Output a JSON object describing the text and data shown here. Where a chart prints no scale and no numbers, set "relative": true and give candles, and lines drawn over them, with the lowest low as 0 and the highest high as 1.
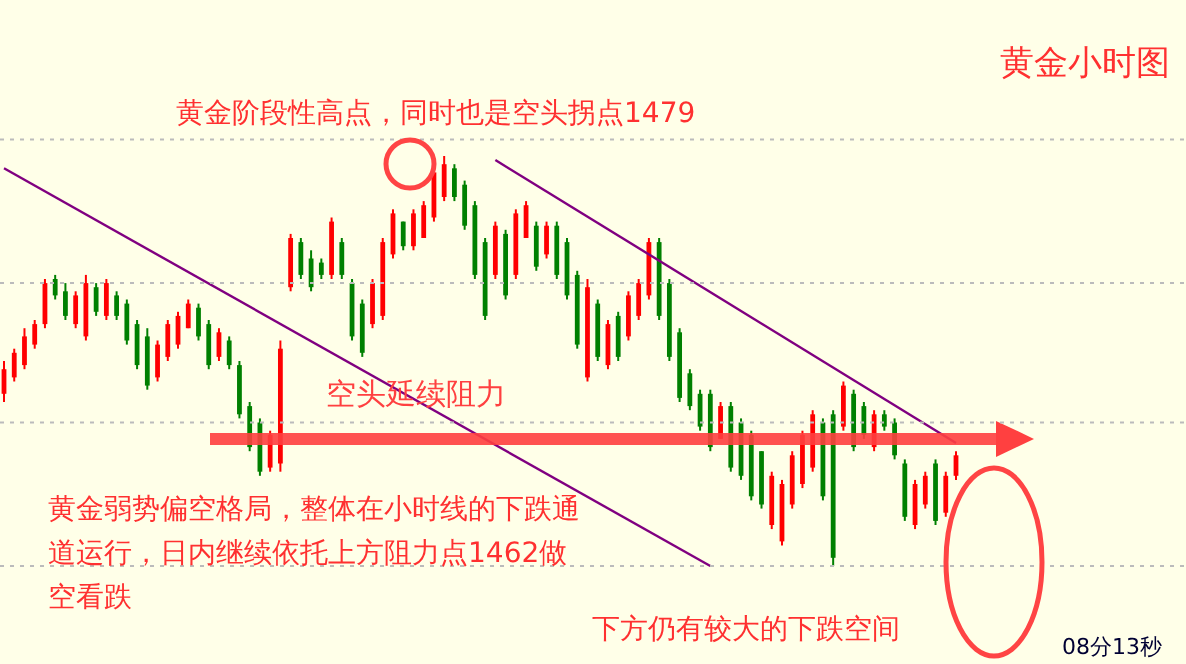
{
  "chart_data": {
    "type": "candlestick",
    "title": "黄金小时图",
    "relative": true,
    "categories": [
      null,
      null,
      null,
      null,
      null,
      null,
      null,
      null,
      null,
      null,
      null,
      null,
      null,
      null,
      null,
      null,
      null,
      null,
      null,
      null,
      null,
      null,
      null,
      null,
      null,
      null,
      null,
      null,
      null,
      null,
      null,
      null,
      null,
      null,
      null,
      null,
      null,
      null,
      null,
      null,
      null,
      null,
      null,
      null,
      null,
      null,
      null,
      null,
      null,
      null,
      null,
      null,
      null,
      null,
      null,
      null,
      null,
      null,
      null,
      null,
      null,
      null,
      null,
      null,
      null,
      null,
      null,
      null,
      null,
      null,
      null,
      null,
      null,
      null,
      null,
      null,
      null,
      null,
      null,
      null,
      null,
      null,
      null,
      null,
      null,
      null,
      null,
      null,
      null,
      null,
      null,
      null,
      null,
      null
    ],
    "ohlc": [
      [
        0.42,
        0.5,
        0.4,
        0.48
      ],
      [
        0.46,
        0.53,
        0.45,
        0.52
      ],
      [
        0.49,
        0.58,
        0.48,
        0.56
      ],
      [
        0.54,
        0.6,
        0.53,
        0.59
      ],
      [
        0.59,
        0.7,
        0.58,
        0.69
      ],
      [
        0.7,
        0.71,
        0.65,
        0.66
      ],
      [
        0.67,
        0.69,
        0.6,
        0.61
      ],
      [
        0.59,
        0.67,
        0.58,
        0.66
      ],
      [
        0.56,
        0.71,
        0.55,
        0.69
      ],
      [
        0.68,
        0.69,
        0.61,
        0.62
      ],
      [
        0.61,
        0.7,
        0.6,
        0.69
      ],
      [
        0.66,
        0.67,
        0.6,
        0.61
      ],
      [
        0.64,
        0.65,
        0.54,
        0.55
      ],
      [
        0.59,
        0.6,
        0.48,
        0.49
      ],
      [
        0.56,
        0.58,
        0.43,
        0.44
      ],
      [
        0.46,
        0.55,
        0.45,
        0.54
      ],
      [
        0.51,
        0.6,
        0.5,
        0.59
      ],
      [
        0.54,
        0.62,
        0.53,
        0.61
      ],
      [
        0.58,
        0.65,
        0.58,
        0.64
      ],
      [
        0.63,
        0.64,
        0.55,
        0.56
      ],
      [
        0.59,
        0.6,
        0.48,
        0.49
      ],
      [
        0.51,
        0.58,
        0.5,
        0.57
      ],
      [
        0.55,
        0.56,
        0.48,
        0.49
      ],
      [
        0.49,
        0.5,
        0.36,
        0.37
      ],
      [
        0.39,
        0.4,
        0.28,
        0.29
      ],
      [
        0.35,
        0.36,
        0.22,
        0.23
      ],
      [
        0.24,
        0.33,
        0.23,
        0.32
      ],
      [
        0.25,
        0.55,
        0.23,
        0.53
      ],
      [
        0.68,
        0.81,
        0.67,
        0.8
      ],
      [
        0.79,
        0.8,
        0.7,
        0.71
      ],
      [
        0.75,
        0.77,
        0.67,
        0.68
      ],
      [
        0.74,
        0.75,
        0.7,
        0.71
      ],
      [
        0.71,
        0.85,
        0.7,
        0.84
      ],
      [
        0.79,
        0.8,
        0.7,
        0.71
      ],
      [
        0.69,
        0.7,
        0.55,
        0.56
      ],
      [
        0.64,
        0.65,
        0.51,
        0.52
      ],
      [
        0.59,
        0.7,
        0.58,
        0.69
      ],
      [
        0.61,
        0.8,
        0.6,
        0.79
      ],
      [
        0.76,
        0.87,
        0.75,
        0.86
      ],
      [
        0.84,
        0.84,
        0.77,
        0.78
      ],
      [
        0.78,
        0.87,
        0.77,
        0.86
      ],
      [
        0.8,
        0.89,
        0.8,
        0.88
      ],
      [
        0.85,
        0.97,
        0.84,
        0.96
      ],
      [
        0.9,
        1,
        0.89,
        0.98
      ],
      [
        0.97,
        0.98,
        0.89,
        0.9
      ],
      [
        0.93,
        0.94,
        0.82,
        0.83
      ],
      [
        0.88,
        0.89,
        0.7,
        0.71
      ],
      [
        0.79,
        0.8,
        0.6,
        0.61
      ],
      [
        0.71,
        0.84,
        0.7,
        0.83
      ],
      [
        0.81,
        0.82,
        0.65,
        0.66
      ],
      [
        0.71,
        0.87,
        0.7,
        0.86
      ],
      [
        0.8,
        0.89,
        0.8,
        0.88
      ],
      [
        0.83,
        0.84,
        0.72,
        0.73
      ],
      [
        0.76,
        0.84,
        0.75,
        0.83
      ],
      [
        0.83,
        0.84,
        0.7,
        0.71
      ],
      [
        0.79,
        0.8,
        0.65,
        0.66
      ],
      [
        0.71,
        0.72,
        0.53,
        0.54
      ],
      [
        0.46,
        0.7,
        0.45,
        0.68
      ],
      [
        0.64,
        0.65,
        0.5,
        0.51
      ],
      [
        0.49,
        0.6,
        0.48,
        0.59
      ],
      [
        0.61,
        0.62,
        0.5,
        0.51
      ],
      [
        0.56,
        0.67,
        0.55,
        0.66
      ],
      [
        0.61,
        0.7,
        0.6,
        0.69
      ],
      [
        0.66,
        0.8,
        0.65,
        0.79
      ],
      [
        0.79,
        0.8,
        0.6,
        0.61
      ],
      [
        0.69,
        0.7,
        0.5,
        0.51
      ],
      [
        0.57,
        0.58,
        0.4,
        0.41
      ],
      [
        0.47,
        0.48,
        0.38,
        0.39
      ],
      [
        0.42,
        0.43,
        0.33,
        0.34
      ],
      [
        0.42,
        0.43,
        0.28,
        0.29
      ],
      [
        0.31,
        0.4,
        0.31,
        0.39
      ],
      [
        0.39,
        0.4,
        0.23,
        0.24
      ],
      [
        0.35,
        0.36,
        0.21,
        0.22
      ],
      [
        0.32,
        0.33,
        0.16,
        0.17
      ],
      [
        0.28,
        0.28,
        0.14,
        0.15
      ],
      [
        0.1,
        0.23,
        0.09,
        0.22
      ],
      [
        0.06,
        0.21,
        0.05,
        0.2
      ],
      [
        0.15,
        0.28,
        0.14,
        0.27
      ],
      [
        0.2,
        0.33,
        0.19,
        0.32
      ],
      [
        0.24,
        0.38,
        0.23,
        0.37
      ],
      [
        0.35,
        0.36,
        0.16,
        0.17
      ],
      [
        0.37,
        0.38,
        0,
        0.02
      ],
      [
        0.34,
        0.45,
        0.33,
        0.44
      ],
      [
        0.42,
        0.43,
        0.28,
        0.29
      ],
      [
        0.39,
        0.4,
        0.31,
        0.32
      ],
      [
        0.29,
        0.38,
        0.28,
        0.37
      ],
      [
        0.37,
        0.38,
        0.33,
        0.34
      ],
      [
        0.35,
        0.36,
        0.26,
        0.27
      ],
      [
        0.25,
        0.26,
        0.11,
        0.12
      ],
      [
        0.1,
        0.21,
        0.09,
        0.2
      ],
      [
        0.15,
        0.23,
        0.14,
        0.22
      ],
      [
        0.25,
        0.26,
        0.1,
        0.11
      ],
      [
        0.13,
        0.23,
        0.12,
        0.22
      ],
      [
        0.22,
        0.28,
        0.21,
        0.27
      ]
    ],
    "colors": [
      "#ff0000",
      "#ff0000",
      "#ff0000",
      "#ff0000",
      "#ff0000",
      "#008000",
      "#008000",
      "#ff0000",
      "#ff0000",
      "#008000",
      "#ff0000",
      "#008000",
      "#008000",
      "#008000",
      "#008000",
      "#ff0000",
      "#ff0000",
      "#ff0000",
      "#ff0000",
      "#008000",
      "#008000",
      "#ff0000",
      "#008000",
      "#008000",
      "#008000",
      "#008000",
      "#ff0000",
      "#ff0000",
      "#ff0000",
      "#008000",
      "#008000",
      "#008000",
      "#ff0000",
      "#008000",
      "#008000",
      "#008000",
      "#ff0000",
      "#ff0000",
      "#ff0000",
      "#008000",
      "#ff0000",
      "#ff0000",
      "#ff0000",
      "#ff0000",
      "#008000",
      "#008000",
      "#008000",
      "#008000",
      "#ff0000",
      "#008000",
      "#ff0000",
      "#ff0000",
      "#008000",
      "#ff0000",
      "#008000",
      "#008000",
      "#008000",
      "#ff0000",
      "#008000",
      "#ff0000",
      "#008000",
      "#ff0000",
      "#ff0000",
      "#ff0000",
      "#008000",
      "#008000",
      "#008000",
      "#008000",
      "#008000",
      "#008000",
      "#ff0000",
      "#008000",
      "#008000",
      "#008000",
      "#008000",
      "#ff0000",
      "#ff0000",
      "#ff0000",
      "#ff0000",
      "#ff0000",
      "#008000",
      "#008000",
      "#ff0000",
      "#008000",
      "#008000",
      "#ff0000",
      "#008000",
      "#008000",
      "#008000",
      "#ff0000",
      "#ff0000",
      "#008000",
      "#ff0000",
      "#ff0000"
    ],
    "series": [
      {
        "type": "line",
        "color": "#800080",
        "values": [
          null,
          null,
          null,
          null,
          null,
          null,
          null,
          null,
          null,
          null,
          null,
          null,
          null,
          null,
          null,
          null,
          null,
          null,
          null,
          null,
          null,
          null,
          null,
          null,
          null,
          null,
          null,
          null,
          null,
          null,
          null,
          null,
          null,
          null,
          null,
          null,
          null,
          null,
          null,
          null,
          null,
          null,
          null,
          null,
          null,
          null,
          null,
          null,
          0.99,
          null,
          null,
          null,
          null,
          null,
          null,
          null,
          null,
          null,
          null,
          null,
          null,
          null,
          null,
          null,
          null,
          null,
          null,
          null,
          null,
          null,
          null,
          null,
          null,
          null,
          null,
          null,
          null,
          null,
          null,
          null,
          null,
          null,
          null,
          null,
          null,
          null,
          null,
          null,
          null,
          null,
          null,
          null,
          null,
          0.3
        ]
      },
      {
        "type": "line",
        "color": "#800080",
        "values": [
          0.97,
          null,
          null,
          null,
          null,
          null,
          null,
          null,
          null,
          null,
          null,
          null,
          null,
          null,
          null,
          null,
          null,
          null,
          null,
          null,
          null,
          null,
          null,
          null,
          null,
          null,
          null,
          null,
          null,
          null,
          null,
          null,
          null,
          null,
          null,
          null,
          null,
          null,
          null,
          null,
          null,
          null,
          null,
          null,
          null,
          null,
          null,
          null,
          null,
          null,
          null,
          null,
          null,
          null,
          null,
          null,
          null,
          null,
          null,
          null,
          null,
          null,
          null,
          null,
          null,
          null,
          null,
          null,
          null,
          0,
          null,
          null,
          null,
          null,
          null,
          null,
          null,
          null,
          null,
          null,
          null,
          null,
          null,
          null,
          null,
          null,
          null,
          null,
          null,
          null,
          null,
          null,
          null,
          null
        ]
      }
    ],
    "ref_lines": [
      {
        "axis": "y",
        "value": 0.31,
        "label": "空头延续阻力",
        "color": "#ff4040"
      },
      {
        "axis": "y",
        "value": 0,
        "color": "#bbbbbb",
        "line_style": "dotted"
      },
      {
        "axis": "y",
        "value": 0.35,
        "color": "#bbbbbb",
        "line_style": "dotted"
      },
      {
        "axis": "y",
        "value": 0.69,
        "color": "#bbbbbb",
        "line_style": "dotted"
      },
      {
        "axis": "y",
        "value": 1.04,
        "color": "#bbbbbb",
        "line_style": "dotted"
      }
    ],
    "annotations": [
      "黄金阶段性高点，同时也是空头拐点1479",
      "黄金弱势偏空格局，整体在小时线的下跌通道运行，日内继续依托上方阻力点1462做空看跌",
      "下方仍有较大的下跌空间",
      "08分13秒"
    ]
  }
}
